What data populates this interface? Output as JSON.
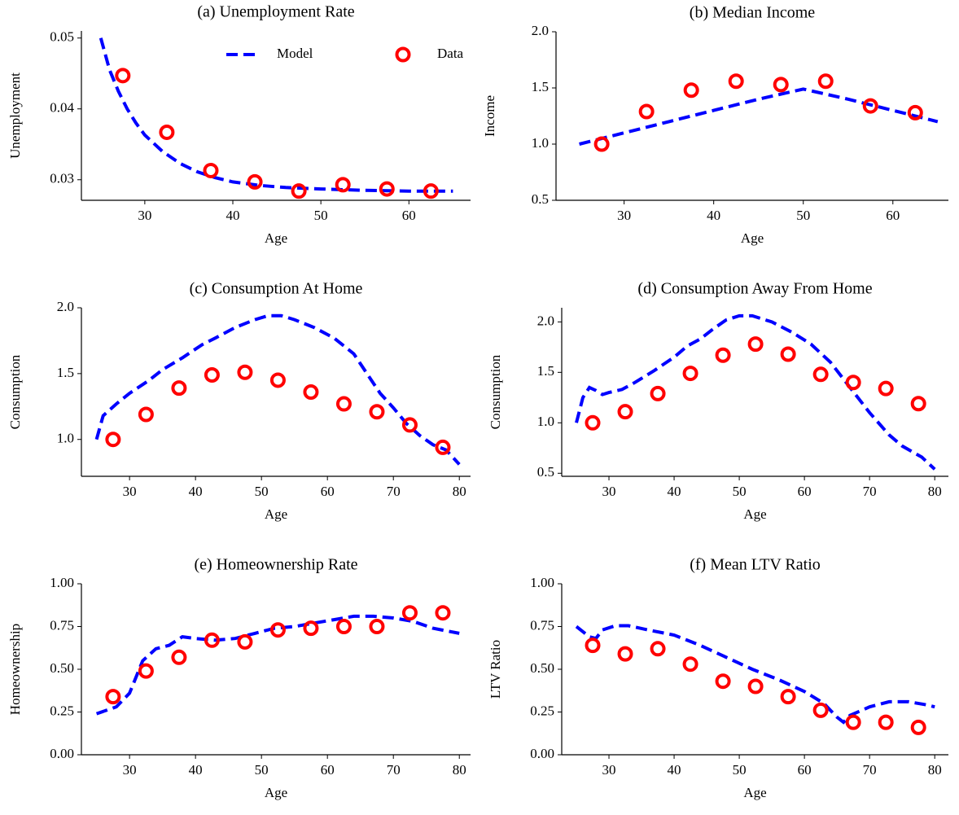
{
  "chart_data": [
    {
      "type": "line",
      "title": "(a) Unemployment Rate",
      "xlabel": "Age",
      "ylabel": "Unemployment",
      "xlim": [
        22.8,
        67
      ],
      "ylim": [
        0.0271,
        0.051
      ],
      "xticks": [
        30,
        40,
        50,
        60
      ],
      "yticks": [
        0.03,
        0.04,
        0.05
      ],
      "legend": "upper right",
      "series": [
        {
          "name": "Model",
          "color": "#0000ff",
          "linestyle": "--",
          "x": [
            25,
            26,
            27,
            28,
            29,
            30,
            32,
            34,
            36,
            38,
            40,
            43,
            46,
            50,
            55,
            60,
            65
          ],
          "values": [
            0.05,
            0.0455,
            0.0425,
            0.04,
            0.038,
            0.0363,
            0.034,
            0.0323,
            0.0311,
            0.0303,
            0.0297,
            0.0292,
            0.0289,
            0.0287,
            0.0285,
            0.0284,
            0.0284
          ]
        },
        {
          "name": "Data",
          "color": "#ff0000",
          "marker": "o",
          "x": [
            27.5,
            32.5,
            37.5,
            42.5,
            47.5,
            52.5,
            57.5,
            62.5
          ],
          "values": [
            0.0447,
            0.0367,
            0.0313,
            0.0297,
            0.0284,
            0.0293,
            0.0287,
            0.0284
          ]
        }
      ]
    },
    {
      "type": "line",
      "title": "(b) Median Income",
      "xlabel": "Age",
      "ylabel": "Income",
      "xlim": [
        22.4,
        66.2
      ],
      "ylim": [
        0.5,
        2.0
      ],
      "xticks": [
        30,
        40,
        50,
        60
      ],
      "yticks": [
        0.5,
        {
          "value": 1,
          "label": "1.0"
        },
        1.5,
        {
          "value": 2,
          "label": "2.0"
        }
      ],
      "series": [
        {
          "name": "Model",
          "color": "#0000ff",
          "linestyle": "--",
          "x": [
            25,
            30,
            35,
            40,
            45,
            50,
            55,
            60,
            65
          ],
          "values": [
            1.0,
            1.1,
            1.2,
            1.3,
            1.4,
            1.49,
            1.4,
            1.3,
            1.2
          ]
        },
        {
          "name": "Data",
          "color": "#ff0000",
          "marker": "o",
          "x": [
            27.5,
            32.5,
            37.5,
            42.5,
            47.5,
            52.5,
            57.5,
            62.5
          ],
          "values": [
            1.0,
            1.29,
            1.48,
            1.56,
            1.53,
            1.56,
            1.34,
            1.28
          ]
        }
      ]
    },
    {
      "type": "line",
      "title": "(c) Consumption At Home",
      "xlabel": "Age",
      "ylabel": "Consumption",
      "xlim": [
        22.7,
        81.7
      ],
      "ylim": [
        0.72,
        2.0
      ],
      "xticks": [
        30,
        40,
        50,
        60,
        70,
        80
      ],
      "yticks": [
        {
          "value": 1,
          "label": "1.0"
        },
        1.5,
        {
          "value": 2,
          "label": "2.0"
        }
      ],
      "series": [
        {
          "name": "Model",
          "color": "#0000ff",
          "linestyle": "--",
          "x": [
            25,
            26,
            28,
            30,
            33,
            35,
            38,
            41,
            43,
            46,
            49,
            51,
            53,
            55,
            58,
            61,
            64,
            66,
            68,
            70,
            72,
            74,
            76,
            78,
            80
          ],
          "values": [
            1.0,
            1.18,
            1.27,
            1.35,
            1.45,
            1.53,
            1.62,
            1.72,
            1.77,
            1.85,
            1.91,
            1.94,
            1.94,
            1.91,
            1.85,
            1.77,
            1.65,
            1.5,
            1.35,
            1.24,
            1.12,
            1.03,
            0.96,
            0.92,
            0.81
          ]
        },
        {
          "name": "Data",
          "color": "#ff0000",
          "marker": "o",
          "x": [
            27.5,
            32.5,
            37.5,
            42.5,
            47.5,
            52.5,
            57.5,
            62.5,
            67.5,
            72.5,
            77.5
          ],
          "values": [
            1.0,
            1.19,
            1.39,
            1.49,
            1.51,
            1.45,
            1.36,
            1.27,
            1.21,
            1.11,
            0.94
          ]
        }
      ]
    },
    {
      "type": "line",
      "title": "(d) Consumption Away From Home",
      "xlabel": "Age",
      "ylabel": "Consumption",
      "xlim": [
        22.75,
        82.1
      ],
      "ylim": [
        0.47,
        2.14
      ],
      "xticks": [
        30,
        40,
        50,
        60,
        70,
        80
      ],
      "yticks": [
        0.5,
        {
          "value": 1,
          "label": "1.0"
        },
        1.5,
        {
          "value": 2,
          "label": "2.0"
        }
      ],
      "series": [
        {
          "name": "Model",
          "color": "#0000ff",
          "linestyle": "--",
          "x": [
            25,
            26,
            27,
            28,
            29,
            30,
            32,
            34,
            37,
            40,
            42,
            44,
            46,
            48,
            50,
            52,
            55,
            58,
            61,
            64,
            67,
            70,
            73,
            75,
            78,
            80
          ],
          "values": [
            1.0,
            1.25,
            1.35,
            1.32,
            1.28,
            1.3,
            1.33,
            1.4,
            1.52,
            1.65,
            1.76,
            1.83,
            1.93,
            2.02,
            2.06,
            2.06,
            2.0,
            1.9,
            1.78,
            1.6,
            1.35,
            1.1,
            0.88,
            0.77,
            0.66,
            0.54
          ]
        },
        {
          "name": "Data",
          "color": "#ff0000",
          "marker": "o",
          "x": [
            27.5,
            32.5,
            37.5,
            42.5,
            47.5,
            52.5,
            57.5,
            62.5,
            67.5,
            72.5,
            77.5
          ],
          "values": [
            1.0,
            1.11,
            1.29,
            1.49,
            1.67,
            1.78,
            1.68,
            1.48,
            1.4,
            1.34,
            1.19
          ]
        }
      ]
    },
    {
      "type": "line",
      "title": "(e) Homeownership Rate",
      "xlabel": "Age",
      "ylabel": "Homeownership",
      "xlim": [
        22.7,
        81.7
      ],
      "ylim": [
        0,
        1
      ],
      "xticks": [
        30,
        40,
        50,
        60,
        70,
        80
      ],
      "yticks": [
        {
          "value": 0,
          "label": "0.00"
        },
        0.25,
        {
          "value": 0.5,
          "label": "0.50"
        },
        0.75,
        {
          "value": 1,
          "label": "1.00"
        }
      ],
      "series": [
        {
          "name": "Model",
          "color": "#0000ff",
          "linestyle": "--",
          "x": [
            25,
            28,
            30,
            32,
            34,
            36,
            38,
            40,
            43,
            46,
            49,
            52,
            55,
            58,
            61,
            64,
            67,
            70,
            73,
            76,
            80
          ],
          "values": [
            0.24,
            0.28,
            0.36,
            0.55,
            0.62,
            0.64,
            0.69,
            0.68,
            0.67,
            0.68,
            0.71,
            0.74,
            0.75,
            0.77,
            0.79,
            0.81,
            0.81,
            0.8,
            0.78,
            0.74,
            0.71
          ]
        },
        {
          "name": "Data",
          "color": "#ff0000",
          "marker": "o",
          "x": [
            27.5,
            32.5,
            37.5,
            42.5,
            47.5,
            52.5,
            57.5,
            62.5,
            67.5,
            72.5,
            77.5
          ],
          "values": [
            0.34,
            0.49,
            0.57,
            0.67,
            0.66,
            0.73,
            0.74,
            0.75,
            0.75,
            0.83,
            0.83
          ]
        }
      ]
    },
    {
      "type": "line",
      "title": "(f) Mean LTV Ratio",
      "xlabel": "Age",
      "ylabel": "LTV Ratio",
      "xlim": [
        22.75,
        82.1
      ],
      "ylim": [
        0,
        1
      ],
      "xticks": [
        30,
        40,
        50,
        60,
        70,
        80
      ],
      "yticks": [
        {
          "value": 0,
          "label": "0.00"
        },
        0.25,
        {
          "value": 0.5,
          "label": "0.50"
        },
        0.75,
        {
          "value": 1,
          "label": "1.00"
        }
      ],
      "series": [
        {
          "name": "Model",
          "color": "#0000ff",
          "linestyle": "--",
          "x": [
            25,
            27,
            28,
            29,
            31,
            33,
            36,
            40,
            44,
            48,
            52,
            56,
            60,
            63,
            65,
            66,
            67,
            70,
            73,
            76,
            79,
            80
          ],
          "values": [
            0.75,
            0.69,
            0.68,
            0.73,
            0.755,
            0.755,
            0.73,
            0.7,
            0.64,
            0.57,
            0.5,
            0.44,
            0.37,
            0.3,
            0.22,
            0.19,
            0.23,
            0.28,
            0.31,
            0.31,
            0.29,
            0.28
          ]
        },
        {
          "name": "Data",
          "color": "#ff0000",
          "marker": "o",
          "x": [
            27.5,
            32.5,
            37.5,
            42.5,
            47.5,
            52.5,
            57.5,
            62.5,
            67.5,
            72.5,
            77.5
          ],
          "values": [
            0.64,
            0.59,
            0.62,
            0.53,
            0.43,
            0.4,
            0.34,
            0.26,
            0.19,
            0.19,
            0.16
          ]
        }
      ]
    }
  ]
}
